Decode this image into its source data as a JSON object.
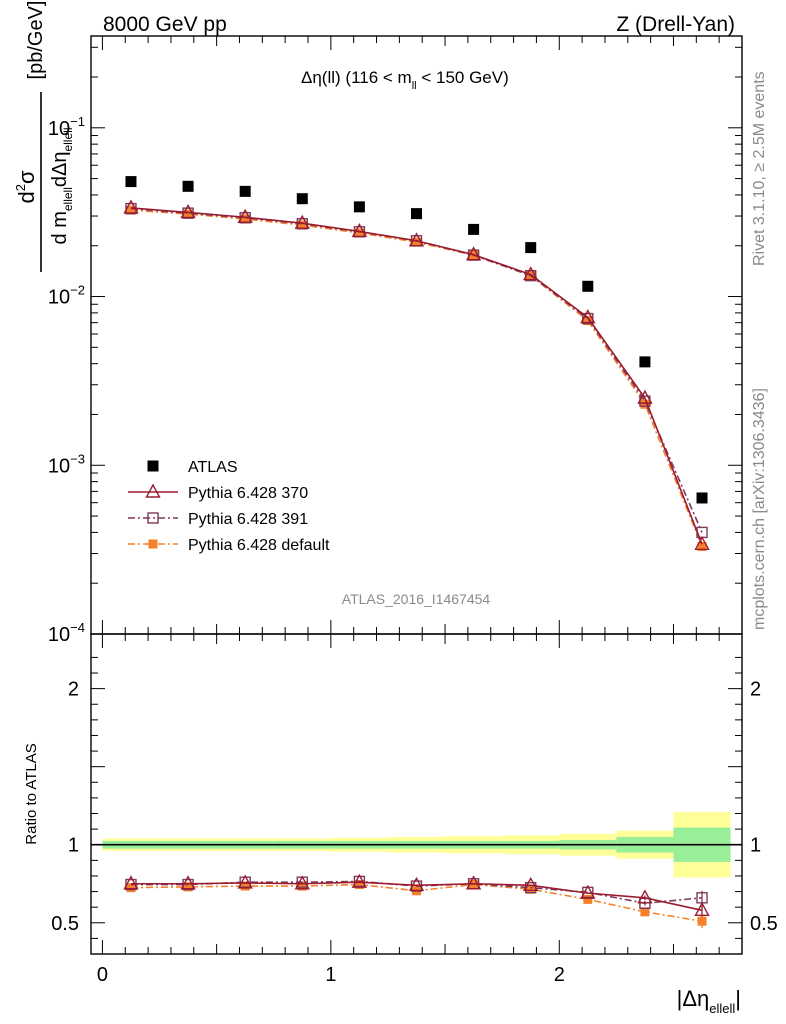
{
  "header": {
    "left": "8000 GeV pp",
    "right": "Z (Drell-Yan)"
  },
  "side": {
    "rivet": "Rivet 3.1.10, ≥ 2.5M events",
    "mcplots": "mcplots.cern.ch [arXiv:1306.3436]"
  },
  "chart_data": [
    {
      "type": "scatter",
      "title": "Δη(ll) (116 < m_ll < 150 GeV)",
      "title_parts": {
        "main": "Δη(ll) (116 < m",
        "sub": "ll",
        "tail": " < 150 GeV)"
      },
      "ylabel": "d²σ / d m_ellell dΔη_ellell [pb/GeV]",
      "ylabel_parts": {
        "d2": "d",
        "sup": "2",
        "sigma": "σ",
        "d": "d m",
        "sub1": "ellell",
        "deta": "dΔη",
        "sub2": "ellell",
        "unit": "[pb/GeV]"
      },
      "yscale": "log",
      "ylim": [
        0.0001,
        0.35
      ],
      "xlim": [
        -0.05,
        2.8
      ],
      "y_ticks": [
        {
          "value": 0.1,
          "label": "10",
          "exp": "−1"
        },
        {
          "value": 0.01,
          "label": "10",
          "exp": "−2"
        },
        {
          "value": 0.001,
          "label": "10",
          "exp": "−3"
        },
        {
          "value": 0.0001,
          "label": "10",
          "exp": "−4"
        }
      ],
      "watermark": "ATLAS_2016_I1467454",
      "legend_position": "lower-left",
      "x": [
        0.125,
        0.375,
        0.625,
        0.875,
        1.125,
        1.375,
        1.625,
        1.875,
        2.125,
        2.375,
        2.625
      ],
      "series": [
        {
          "name": "ATLAS",
          "color": "#000000",
          "marker": "filled-square",
          "line": "none",
          "values": [
            0.048,
            0.045,
            0.042,
            0.038,
            0.034,
            0.031,
            0.025,
            0.0195,
            0.0115,
            0.0041,
            0.00064
          ]
        },
        {
          "name": "Pythia 6.428 370",
          "color": "#9b1b30",
          "marker": "open-triangle",
          "line": "solid",
          "values": [
            0.0335,
            0.0315,
            0.0295,
            0.0272,
            0.0243,
            0.0214,
            0.0177,
            0.0135,
            0.0075,
            0.0025,
            0.00034
          ]
        },
        {
          "name": "Pythia 6.428 391",
          "color": "#7e3a5b",
          "marker": "open-square",
          "line": "dashdot",
          "values": [
            0.0332,
            0.0312,
            0.0293,
            0.027,
            0.0242,
            0.0214,
            0.0176,
            0.0133,
            0.0074,
            0.0024,
            0.0004
          ]
        },
        {
          "name": "Pythia 6.428 default",
          "color": "#f5822a",
          "marker": "filled-square-small",
          "line": "dashdot",
          "values": [
            0.0325,
            0.0308,
            0.0288,
            0.0265,
            0.0238,
            0.021,
            0.0176,
            0.0133,
            0.0072,
            0.0023,
            0.00033
          ]
        }
      ]
    },
    {
      "type": "scatter",
      "ylabel": "Ratio to ATLAS",
      "xlabel": "|Δη_ellell|",
      "xlabel_parts": {
        "main": "|Δη",
        "sub": "ellell",
        "tail": "|"
      },
      "ylim": [
        0.3,
        2.35
      ],
      "xlim": [
        -0.05,
        2.8
      ],
      "y_ticks": [
        0.5,
        1,
        2
      ],
      "y_tick_labels": [
        "0.5",
        "1",
        "2"
      ],
      "x_ticks": [
        0,
        1,
        2
      ],
      "x_tick_labels": [
        "0",
        "1",
        "2"
      ],
      "reference_line": 1,
      "bands": {
        "x_edges": [
          0,
          0.25,
          0.5,
          0.75,
          1.0,
          1.25,
          1.5,
          1.75,
          2.0,
          2.25,
          2.5,
          2.75
        ],
        "stat_half": [
          0.025,
          0.025,
          0.025,
          0.025,
          0.025,
          0.025,
          0.025,
          0.025,
          0.03,
          0.05,
          0.11
        ],
        "total_half": [
          0.04,
          0.04,
          0.04,
          0.04,
          0.045,
          0.05,
          0.055,
          0.06,
          0.07,
          0.09,
          0.21
        ],
        "stat_color": "#99ee99",
        "total_color": "#ffff99"
      },
      "x": [
        0.125,
        0.375,
        0.625,
        0.875,
        1.125,
        1.375,
        1.625,
        1.875,
        2.125,
        2.375,
        2.625
      ],
      "series": [
        {
          "name": "Pythia 6.428 370",
          "color": "#9b1b30",
          "marker": "open-triangle",
          "line": "solid",
          "values": [
            0.75,
            0.75,
            0.755,
            0.75,
            0.76,
            0.74,
            0.75,
            0.74,
            0.69,
            0.66,
            0.58
          ],
          "errors": [
            0.01,
            0.01,
            0.01,
            0.01,
            0.01,
            0.01,
            0.01,
            0.01,
            0.01,
            0.015,
            0.04
          ]
        },
        {
          "name": "Pythia 6.428 391",
          "color": "#7e3a5b",
          "marker": "open-square",
          "line": "dashdot",
          "values": [
            0.745,
            0.745,
            0.76,
            0.76,
            0.765,
            0.735,
            0.75,
            0.725,
            0.695,
            0.625,
            0.66
          ],
          "errors": [
            0.01,
            0.01,
            0.01,
            0.01,
            0.01,
            0.01,
            0.01,
            0.01,
            0.01,
            0.015,
            0.045
          ]
        },
        {
          "name": "Pythia 6.428 default",
          "color": "#f5822a",
          "marker": "filled-square-small",
          "line": "dashdot",
          "values": [
            0.725,
            0.73,
            0.735,
            0.735,
            0.745,
            0.705,
            0.745,
            0.715,
            0.65,
            0.57,
            0.51
          ],
          "errors": [
            0.01,
            0.01,
            0.01,
            0.01,
            0.01,
            0.01,
            0.01,
            0.01,
            0.01,
            0.015,
            0.045
          ]
        }
      ]
    }
  ]
}
